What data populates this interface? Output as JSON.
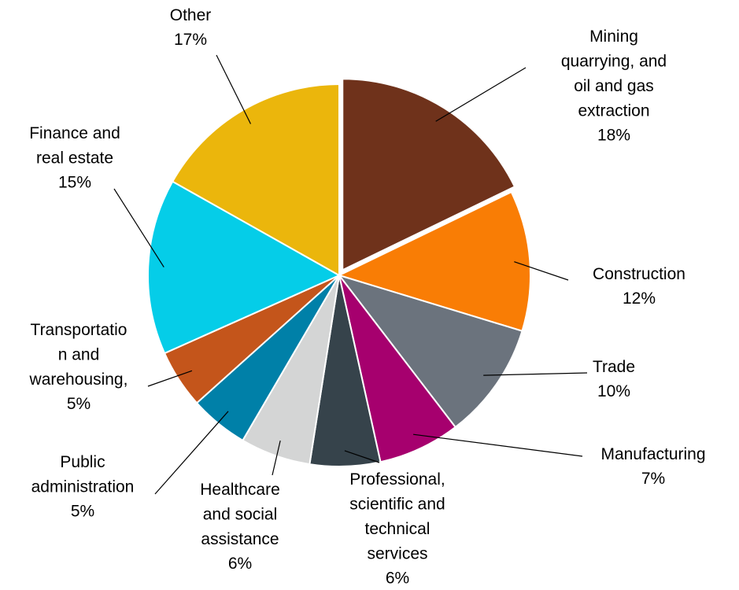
{
  "chart_data": {
    "type": "pie",
    "categories": [
      "Mining\nquarrying, and\noil and gas\nextraction",
      "Construction",
      "Trade",
      "Manufacturing",
      "Professional,\nscientific and\ntechnical\nservices",
      "Healthcare\nand social\nassistance",
      "Public\nadministration",
      "Transportatio\nn and\nwarehousing,",
      "Finance and\nreal estate",
      "Other"
    ],
    "values": [
      18,
      12,
      10,
      7,
      6,
      6,
      5,
      5,
      15,
      17
    ],
    "value_labels": [
      "18%",
      "12%",
      "10%",
      "7%",
      "6%",
      "6%",
      "5%",
      "5%",
      "15%",
      "17%"
    ],
    "colors": [
      "#6f321b",
      "#f97d05",
      "#6b737d",
      "#a6006e",
      "#36434b",
      "#d4d5d5",
      "#0080a8",
      "#c4551b",
      "#05cde8",
      "#ebb60c"
    ]
  }
}
